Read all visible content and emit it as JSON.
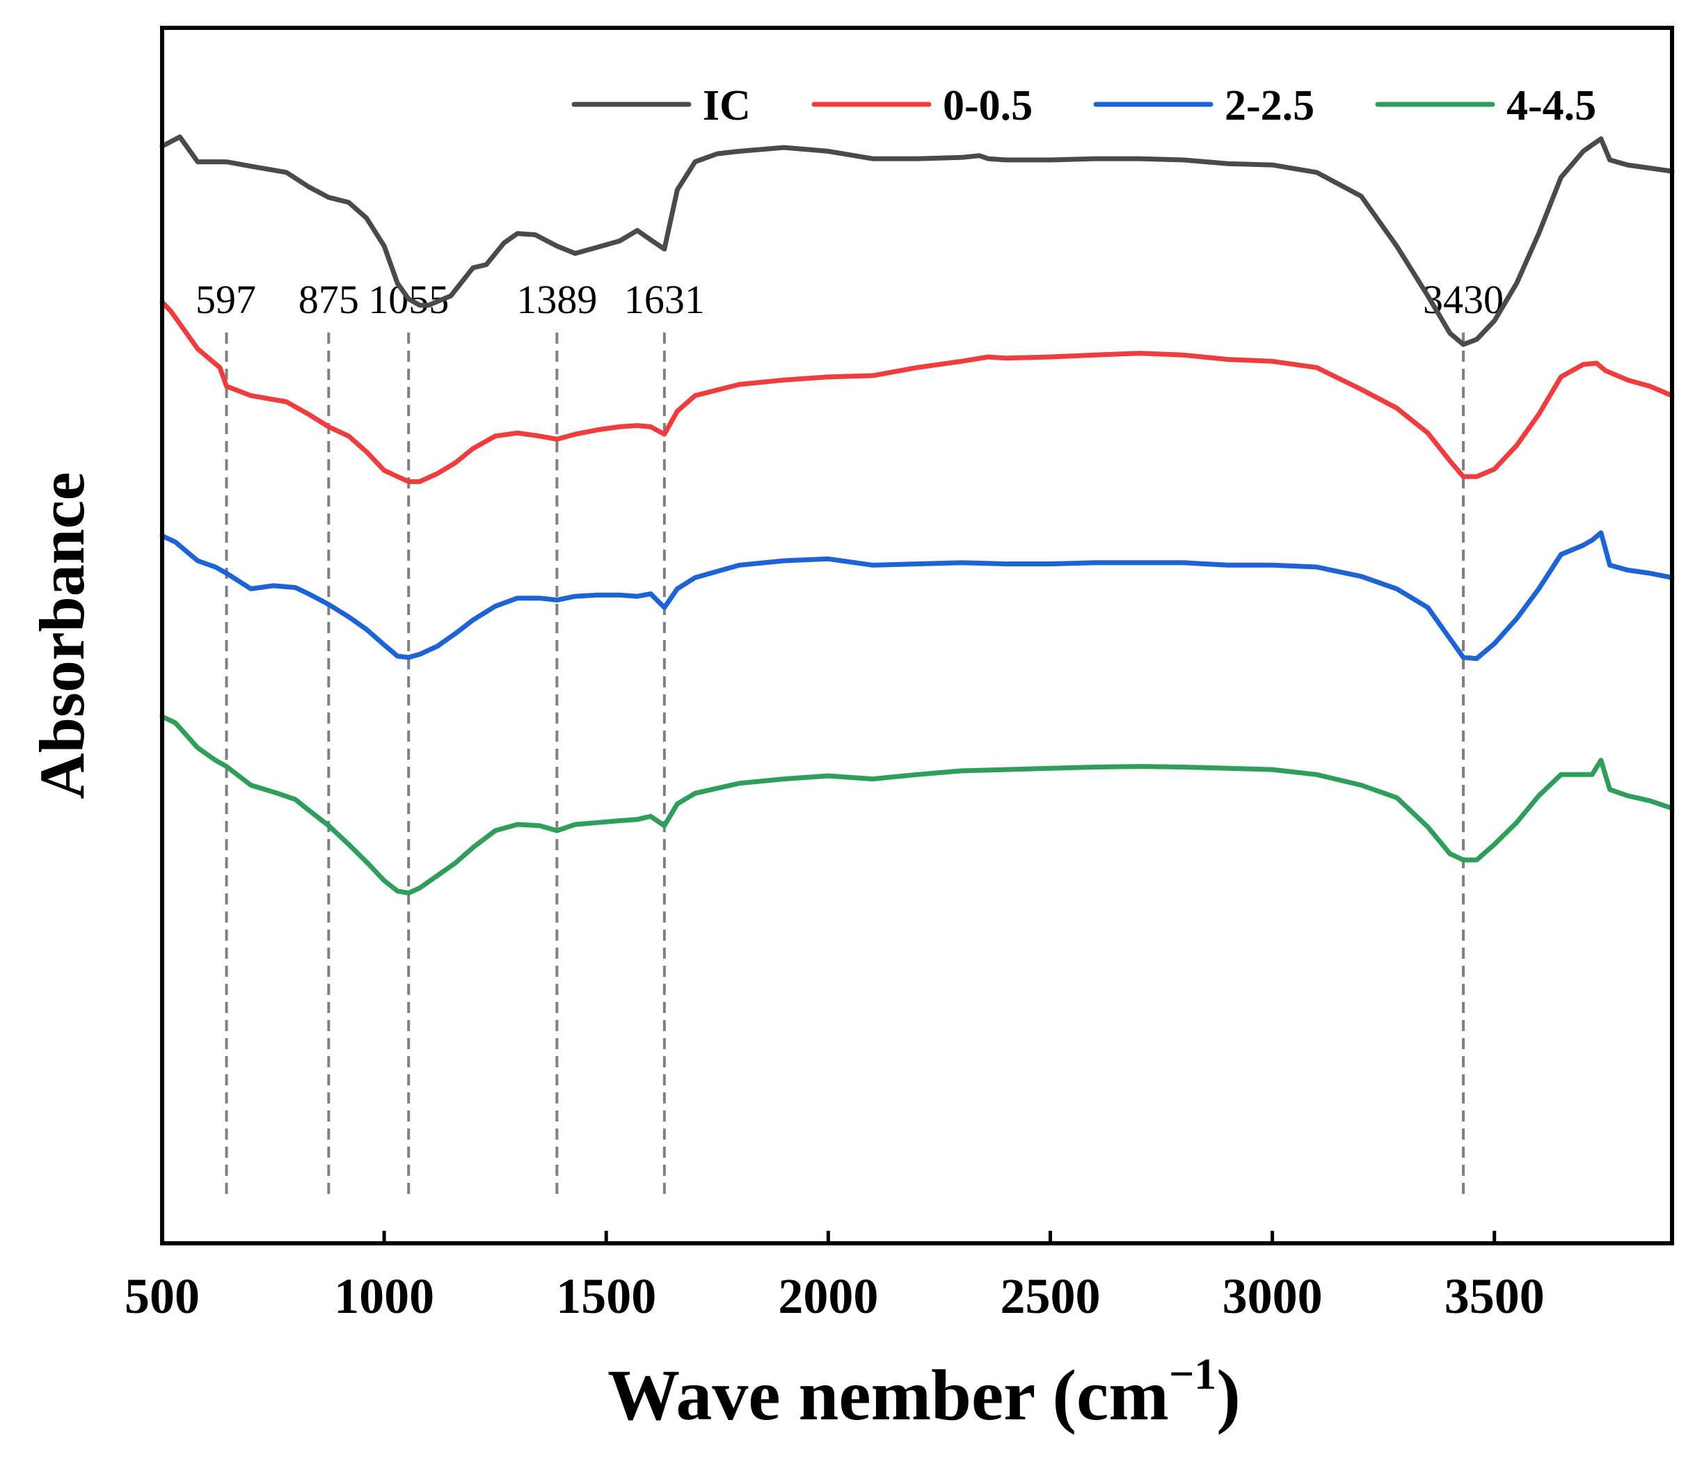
{
  "chart_data": {
    "type": "line",
    "xlabel": "Wave nember (cm",
    "xlabel_sup": "−1",
    "xlabel_close": ")",
    "ylabel": "Absorbance",
    "xlim": [
      500,
      3900
    ],
    "ylim": [
      -0.9,
      1.05
    ],
    "grid": false,
    "legend_position": "top-right",
    "xticks": [
      500,
      1000,
      1500,
      2000,
      2500,
      3000,
      3500
    ],
    "xtick_labels": [
      "500",
      "1000",
      "1500",
      "2000",
      "2500",
      "3000",
      "3500"
    ],
    "yticks_shown": false,
    "peak_markers": [
      {
        "label": "597",
        "x": 645
      },
      {
        "label": "875",
        "x": 875
      },
      {
        "label": "1055",
        "x": 1055
      },
      {
        "label": "1389",
        "x": 1389
      },
      {
        "label": "1631",
        "x": 1631
      },
      {
        "label": "3430",
        "x": 3430
      }
    ],
    "series": [
      {
        "name": "IC",
        "color": "#4a4a4a",
        "x": [
          500,
          540,
          580,
          645,
          700,
          780,
          830,
          875,
          920,
          960,
          1000,
          1030,
          1055,
          1080,
          1100,
          1150,
          1200,
          1230,
          1270,
          1300,
          1340,
          1389,
          1430,
          1480,
          1530,
          1570,
          1600,
          1631,
          1660,
          1700,
          1750,
          1800,
          1850,
          1900,
          2000,
          2100,
          2200,
          2300,
          2340,
          2360,
          2400,
          2500,
          2600,
          2700,
          2800,
          2900,
          3000,
          3100,
          3200,
          3280,
          3350,
          3400,
          3430,
          3460,
          3500,
          3550,
          3600,
          3650,
          3700,
          3720,
          3740,
          3760,
          3800,
          3850,
          3900
        ],
        "y": [
          0.86,
          0.875,
          0.835,
          0.835,
          0.828,
          0.818,
          0.795,
          0.778,
          0.77,
          0.745,
          0.7,
          0.64,
          0.615,
          0.605,
          0.605,
          0.62,
          0.665,
          0.67,
          0.705,
          0.72,
          0.718,
          0.7,
          0.688,
          0.698,
          0.708,
          0.725,
          0.71,
          0.695,
          0.79,
          0.835,
          0.848,
          0.852,
          0.855,
          0.858,
          0.852,
          0.84,
          0.84,
          0.842,
          0.845,
          0.84,
          0.838,
          0.838,
          0.84,
          0.84,
          0.838,
          0.832,
          0.83,
          0.818,
          0.78,
          0.7,
          0.62,
          0.56,
          0.542,
          0.55,
          0.58,
          0.64,
          0.72,
          0.81,
          0.852,
          0.862,
          0.872,
          0.838,
          0.83,
          0.825,
          0.82
        ]
      },
      {
        "name": "0-0.5",
        "color": "#ee3d3f",
        "x": [
          500,
          520,
          580,
          630,
          645,
          700,
          780,
          830,
          875,
          920,
          960,
          1000,
          1030,
          1055,
          1080,
          1120,
          1160,
          1200,
          1250,
          1300,
          1350,
          1389,
          1430,
          1480,
          1530,
          1570,
          1600,
          1631,
          1660,
          1700,
          1800,
          1900,
          2000,
          2100,
          2200,
          2300,
          2360,
          2400,
          2500,
          2600,
          2700,
          2800,
          2900,
          3000,
          3100,
          3200,
          3280,
          3350,
          3400,
          3430,
          3460,
          3500,
          3550,
          3600,
          3650,
          3700,
          3730,
          3750,
          3800,
          3850,
          3900
        ],
        "y": [
          0.61,
          0.595,
          0.535,
          0.505,
          0.475,
          0.46,
          0.45,
          0.43,
          0.41,
          0.395,
          0.37,
          0.34,
          0.33,
          0.322,
          0.322,
          0.335,
          0.352,
          0.375,
          0.395,
          0.4,
          0.395,
          0.39,
          0.398,
          0.405,
          0.41,
          0.412,
          0.41,
          0.398,
          0.435,
          0.46,
          0.478,
          0.485,
          0.49,
          0.492,
          0.505,
          0.515,
          0.522,
          0.52,
          0.522,
          0.525,
          0.528,
          0.525,
          0.518,
          0.515,
          0.505,
          0.47,
          0.44,
          0.4,
          0.355,
          0.33,
          0.33,
          0.342,
          0.38,
          0.43,
          0.49,
          0.51,
          0.512,
          0.5,
          0.485,
          0.475,
          0.46
        ]
      },
      {
        "name": "2-2.5",
        "color": "#1e63d6",
        "x": [
          500,
          530,
          580,
          620,
          645,
          700,
          750,
          800,
          830,
          875,
          920,
          960,
          1000,
          1030,
          1055,
          1080,
          1120,
          1160,
          1200,
          1250,
          1300,
          1350,
          1389,
          1430,
          1480,
          1530,
          1570,
          1600,
          1631,
          1660,
          1700,
          1800,
          1900,
          2000,
          2100,
          2200,
          2300,
          2400,
          2500,
          2600,
          2700,
          2800,
          2900,
          3000,
          3100,
          3200,
          3280,
          3350,
          3400,
          3430,
          3460,
          3500,
          3550,
          3600,
          3650,
          3700,
          3720,
          3740,
          3760,
          3800,
          3850,
          3900
        ],
        "y": [
          0.235,
          0.225,
          0.195,
          0.185,
          0.175,
          0.15,
          0.155,
          0.152,
          0.142,
          0.125,
          0.105,
          0.085,
          0.06,
          0.042,
          0.04,
          0.045,
          0.058,
          0.078,
          0.1,
          0.122,
          0.135,
          0.135,
          0.132,
          0.138,
          0.14,
          0.14,
          0.138,
          0.142,
          0.12,
          0.15,
          0.168,
          0.188,
          0.195,
          0.198,
          0.188,
          0.19,
          0.192,
          0.19,
          0.19,
          0.192,
          0.192,
          0.192,
          0.188,
          0.188,
          0.185,
          0.17,
          0.15,
          0.12,
          0.07,
          0.04,
          0.038,
          0.062,
          0.102,
          0.15,
          0.205,
          0.22,
          0.228,
          0.24,
          0.188,
          0.18,
          0.175,
          0.168
        ]
      },
      {
        "name": "4-4.5",
        "color": "#2f9e5d",
        "x": [
          500,
          530,
          580,
          620,
          645,
          700,
          760,
          800,
          830,
          875,
          920,
          960,
          1000,
          1030,
          1055,
          1080,
          1120,
          1160,
          1200,
          1250,
          1300,
          1350,
          1389,
          1430,
          1480,
          1530,
          1570,
          1600,
          1631,
          1660,
          1700,
          1800,
          1900,
          2000,
          2100,
          2200,
          2300,
          2400,
          2500,
          2600,
          2700,
          2800,
          2900,
          3000,
          3100,
          3200,
          3280,
          3350,
          3400,
          3430,
          3460,
          3500,
          3550,
          3600,
          3650,
          3700,
          3720,
          3740,
          3760,
          3800,
          3850,
          3900
        ],
        "y": [
          -0.055,
          -0.065,
          -0.105,
          -0.125,
          -0.135,
          -0.165,
          -0.178,
          -0.188,
          -0.205,
          -0.23,
          -0.26,
          -0.288,
          -0.318,
          -0.335,
          -0.338,
          -0.33,
          -0.31,
          -0.29,
          -0.265,
          -0.238,
          -0.228,
          -0.23,
          -0.238,
          -0.228,
          -0.225,
          -0.222,
          -0.22,
          -0.215,
          -0.23,
          -0.195,
          -0.178,
          -0.162,
          -0.155,
          -0.15,
          -0.155,
          -0.148,
          -0.142,
          -0.14,
          -0.138,
          -0.136,
          -0.135,
          -0.136,
          -0.138,
          -0.14,
          -0.148,
          -0.165,
          -0.185,
          -0.232,
          -0.275,
          -0.285,
          -0.285,
          -0.26,
          -0.225,
          -0.182,
          -0.148,
          -0.148,
          -0.148,
          -0.125,
          -0.172,
          -0.182,
          -0.19,
          -0.202
        ]
      }
    ]
  }
}
